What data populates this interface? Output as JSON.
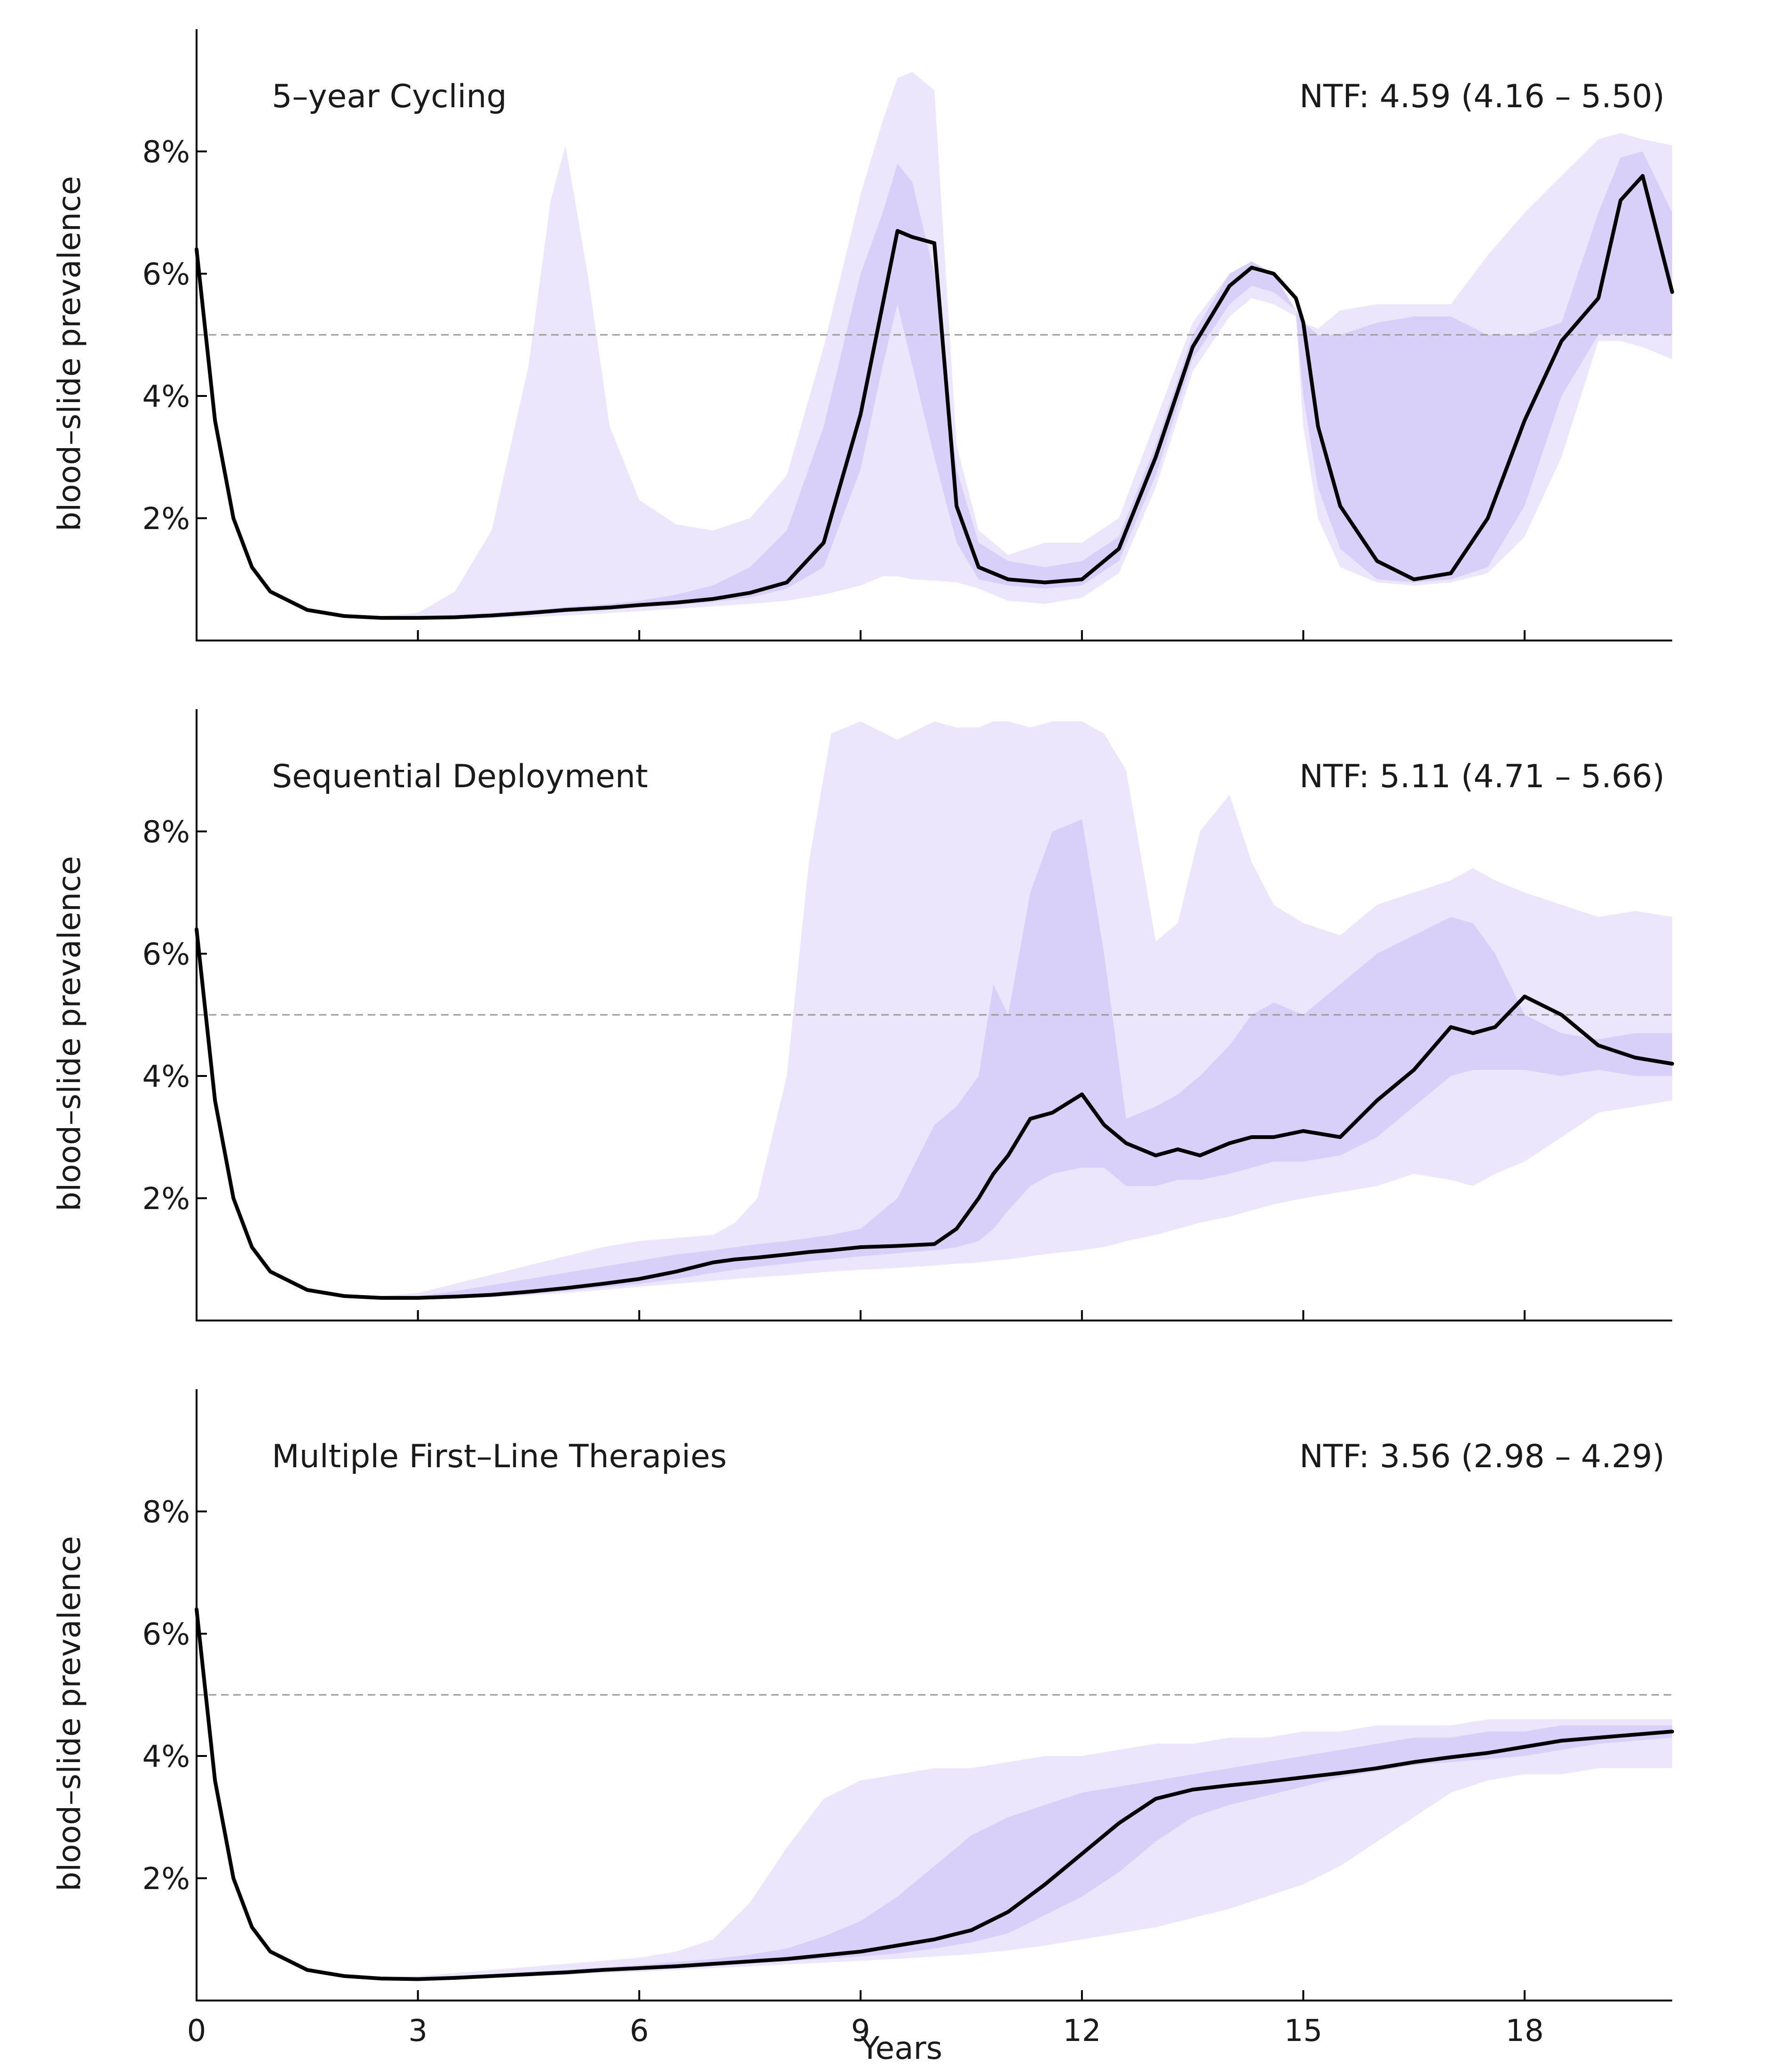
{
  "colors": {
    "outer_band": "#ebe6fb",
    "inner_band": "#d9d0f9",
    "median_line": "#000000",
    "threshold_line": "#9a9a9a",
    "axis": "#000000"
  },
  "x_axis": {
    "label": "Years",
    "ticks": [
      0,
      3,
      6,
      9,
      12,
      15,
      18
    ],
    "range": [
      0,
      20
    ]
  },
  "y_axis": {
    "label": "blood–slide prevalence",
    "ticks": [
      0.02,
      0.04,
      0.06,
      0.08
    ],
    "tick_labels": [
      "2%",
      "4%",
      "6%",
      "8%"
    ],
    "range": [
      0,
      0.1
    ]
  },
  "chart_data": [
    {
      "type": "area",
      "title": "5–year Cycling",
      "annotation": "NTF: 4.59 (4.16 – 5.50)",
      "xlabel": "",
      "ylabel": "blood–slide prevalence",
      "xlim": [
        0,
        20
      ],
      "ylim": [
        0,
        0.1
      ],
      "threshold": 0.05,
      "x": [
        0,
        0.25,
        0.5,
        0.75,
        1,
        1.5,
        2,
        2.5,
        3,
        3.5,
        4,
        4.5,
        4.8,
        5,
        5.3,
        5.6,
        6,
        6.5,
        7,
        7.5,
        8,
        8.5,
        9,
        9.3,
        9.5,
        9.7,
        10,
        10.3,
        10.6,
        11,
        11.5,
        12,
        12.5,
        13,
        13.5,
        14,
        14.3,
        14.6,
        14.9,
        15,
        15.2,
        15.5,
        16,
        16.5,
        17,
        17.5,
        18,
        18.5,
        19,
        19.3,
        19.6,
        20
      ],
      "series": [
        {
          "name": "",
          "role": "outer_upper",
          "values": [
            0.064,
            0.036,
            0.02,
            0.012,
            0.008,
            0.005,
            0.004,
            0.004,
            0.0045,
            0.008,
            0.018,
            0.045,
            0.072,
            0.081,
            0.06,
            0.035,
            0.023,
            0.019,
            0.018,
            0.02,
            0.027,
            0.048,
            0.073,
            0.085,
            0.092,
            0.093,
            0.09,
            0.032,
            0.018,
            0.014,
            0.016,
            0.016,
            0.02,
            0.036,
            0.052,
            0.06,
            0.062,
            0.06,
            0.054,
            0.052,
            0.051,
            0.054,
            0.055,
            0.055,
            0.055,
            0.063,
            0.07,
            0.076,
            0.082,
            0.083,
            0.082,
            0.081
          ]
        },
        {
          "name": "",
          "role": "inner_upper",
          "values": [
            0.064,
            0.036,
            0.02,
            0.012,
            0.008,
            0.005,
            0.004,
            0.004,
            0.004,
            0.0042,
            0.0045,
            0.005,
            0.0052,
            0.0055,
            0.0057,
            0.006,
            0.0065,
            0.0075,
            0.009,
            0.012,
            0.018,
            0.035,
            0.06,
            0.07,
            0.078,
            0.075,
            0.06,
            0.028,
            0.016,
            0.013,
            0.012,
            0.013,
            0.017,
            0.032,
            0.05,
            0.06,
            0.062,
            0.06,
            0.054,
            0.052,
            0.05,
            0.05,
            0.052,
            0.053,
            0.053,
            0.05,
            0.05,
            0.052,
            0.07,
            0.079,
            0.08,
            0.07
          ]
        },
        {
          "name": "",
          "role": "median",
          "values": [
            0.064,
            0.036,
            0.02,
            0.012,
            0.008,
            0.005,
            0.004,
            0.0037,
            0.0037,
            0.0038,
            0.0041,
            0.0045,
            0.0048,
            0.005,
            0.0052,
            0.0054,
            0.0058,
            0.0062,
            0.0068,
            0.0078,
            0.0095,
            0.016,
            0.037,
            0.055,
            0.067,
            0.066,
            0.065,
            0.022,
            0.012,
            0.01,
            0.0095,
            0.01,
            0.015,
            0.03,
            0.048,
            0.058,
            0.061,
            0.06,
            0.056,
            0.052,
            0.035,
            0.022,
            0.013,
            0.01,
            0.011,
            0.02,
            0.036,
            0.049,
            0.056,
            0.072,
            0.076,
            0.057
          ]
        },
        {
          "name": "",
          "role": "inner_lower",
          "values": [
            0.064,
            0.036,
            0.02,
            0.012,
            0.008,
            0.005,
            0.004,
            0.0036,
            0.0036,
            0.0037,
            0.0039,
            0.0042,
            0.0044,
            0.0046,
            0.0048,
            0.005,
            0.0054,
            0.0058,
            0.0063,
            0.007,
            0.0085,
            0.012,
            0.028,
            0.045,
            0.055,
            0.045,
            0.03,
            0.016,
            0.01,
            0.009,
            0.0085,
            0.009,
            0.013,
            0.027,
            0.046,
            0.055,
            0.058,
            0.057,
            0.054,
            0.04,
            0.025,
            0.015,
            0.01,
            0.0095,
            0.01,
            0.012,
            0.022,
            0.04,
            0.05,
            0.05,
            0.05,
            0.05
          ]
        },
        {
          "name": "",
          "role": "outer_lower",
          "values": [
            0.064,
            0.036,
            0.02,
            0.012,
            0.008,
            0.005,
            0.004,
            0.0036,
            0.0035,
            0.0035,
            0.0036,
            0.0038,
            0.004,
            0.0041,
            0.0043,
            0.0045,
            0.0048,
            0.0052,
            0.0056,
            0.006,
            0.0065,
            0.0075,
            0.009,
            0.0105,
            0.0105,
            0.01,
            0.0098,
            0.0095,
            0.0085,
            0.0065,
            0.006,
            0.007,
            0.011,
            0.025,
            0.044,
            0.053,
            0.056,
            0.055,
            0.053,
            0.035,
            0.02,
            0.012,
            0.0095,
            0.009,
            0.0095,
            0.011,
            0.017,
            0.03,
            0.049,
            0.049,
            0.048,
            0.046
          ]
        }
      ]
    },
    {
      "type": "area",
      "title": "Sequential Deployment",
      "annotation": "NTF: 5.11 (4.71 – 5.66)",
      "xlabel": "",
      "ylabel": "blood–slide prevalence",
      "xlim": [
        0,
        20
      ],
      "ylim": [
        0,
        0.1
      ],
      "threshold": 0.05,
      "x": [
        0,
        0.25,
        0.5,
        0.75,
        1,
        1.5,
        2,
        2.5,
        3,
        3.5,
        4,
        4.5,
        5,
        5.5,
        6,
        6.5,
        7,
        7.3,
        7.6,
        8,
        8.3,
        8.6,
        9,
        9.5,
        10,
        10.3,
        10.6,
        10.8,
        11,
        11.3,
        11.6,
        12,
        12.3,
        12.6,
        13,
        13.3,
        13.6,
        14,
        14.3,
        14.6,
        15,
        15.5,
        16,
        16.5,
        17,
        17.3,
        17.6,
        18,
        18.5,
        19,
        19.5,
        20
      ],
      "series": [
        {
          "name": "",
          "role": "outer_upper",
          "values": [
            0.064,
            0.036,
            0.02,
            0.012,
            0.008,
            0.005,
            0.0042,
            0.004,
            0.0045,
            0.006,
            0.0075,
            0.009,
            0.0105,
            0.012,
            0.013,
            0.0135,
            0.014,
            0.016,
            0.02,
            0.04,
            0.075,
            0.096,
            0.098,
            0.095,
            0.098,
            0.097,
            0.097,
            0.098,
            0.098,
            0.097,
            0.098,
            0.098,
            0.096,
            0.09,
            0.062,
            0.065,
            0.08,
            0.086,
            0.075,
            0.068,
            0.065,
            0.063,
            0.068,
            0.07,
            0.072,
            0.074,
            0.072,
            0.07,
            0.068,
            0.066,
            0.067,
            0.066
          ]
        },
        {
          "name": "",
          "role": "inner_upper",
          "values": [
            0.064,
            0.036,
            0.02,
            0.012,
            0.008,
            0.005,
            0.0042,
            0.0038,
            0.004,
            0.0048,
            0.0058,
            0.0068,
            0.0078,
            0.0088,
            0.0098,
            0.0108,
            0.0115,
            0.012,
            0.0125,
            0.013,
            0.0135,
            0.014,
            0.015,
            0.02,
            0.032,
            0.035,
            0.04,
            0.055,
            0.05,
            0.07,
            0.08,
            0.082,
            0.06,
            0.033,
            0.035,
            0.037,
            0.04,
            0.045,
            0.05,
            0.052,
            0.05,
            0.055,
            0.06,
            0.063,
            0.066,
            0.065,
            0.06,
            0.05,
            0.047,
            0.046,
            0.047,
            0.047
          ]
        },
        {
          "name": "",
          "role": "median",
          "values": [
            0.064,
            0.036,
            0.02,
            0.012,
            0.008,
            0.005,
            0.004,
            0.0037,
            0.0037,
            0.0039,
            0.0042,
            0.0047,
            0.0053,
            0.006,
            0.0068,
            0.008,
            0.0095,
            0.01,
            0.0103,
            0.0108,
            0.0112,
            0.0115,
            0.012,
            0.0122,
            0.0125,
            0.015,
            0.02,
            0.024,
            0.027,
            0.033,
            0.034,
            0.037,
            0.032,
            0.029,
            0.027,
            0.028,
            0.027,
            0.029,
            0.03,
            0.03,
            0.031,
            0.03,
            0.036,
            0.041,
            0.048,
            0.047,
            0.048,
            0.053,
            0.05,
            0.045,
            0.043,
            0.042
          ]
        },
        {
          "name": "",
          "role": "inner_lower",
          "values": [
            0.064,
            0.036,
            0.02,
            0.012,
            0.008,
            0.005,
            0.004,
            0.0036,
            0.0036,
            0.0037,
            0.0039,
            0.0043,
            0.0048,
            0.0054,
            0.006,
            0.0068,
            0.0078,
            0.0083,
            0.0088,
            0.0093,
            0.0097,
            0.01,
            0.0105,
            0.011,
            0.0115,
            0.012,
            0.013,
            0.015,
            0.018,
            0.022,
            0.024,
            0.025,
            0.025,
            0.022,
            0.022,
            0.023,
            0.023,
            0.024,
            0.025,
            0.026,
            0.026,
            0.027,
            0.03,
            0.035,
            0.04,
            0.041,
            0.041,
            0.041,
            0.04,
            0.041,
            0.04,
            0.04
          ]
        },
        {
          "name": "",
          "role": "outer_lower",
          "values": [
            0.064,
            0.036,
            0.02,
            0.012,
            0.008,
            0.005,
            0.004,
            0.0036,
            0.0035,
            0.0036,
            0.0038,
            0.0041,
            0.0045,
            0.005,
            0.0055,
            0.006,
            0.0065,
            0.0068,
            0.0071,
            0.0074,
            0.0077,
            0.008,
            0.0083,
            0.0086,
            0.009,
            0.0093,
            0.0095,
            0.0098,
            0.01,
            0.0105,
            0.011,
            0.0115,
            0.012,
            0.013,
            0.014,
            0.015,
            0.016,
            0.017,
            0.018,
            0.019,
            0.02,
            0.021,
            0.022,
            0.024,
            0.023,
            0.022,
            0.024,
            0.026,
            0.03,
            0.034,
            0.035,
            0.036
          ]
        }
      ]
    },
    {
      "type": "area",
      "title": "Multiple First–Line Therapies",
      "annotation": "NTF: 3.56 (2.98 – 4.29)",
      "xlabel": "Years",
      "ylabel": "blood–slide prevalence",
      "xlim": [
        0,
        20
      ],
      "ylim": [
        0,
        0.1
      ],
      "threshold": 0.05,
      "x": [
        0,
        0.25,
        0.5,
        0.75,
        1,
        1.5,
        2,
        2.5,
        3,
        3.5,
        4,
        4.5,
        5,
        5.5,
        6,
        6.5,
        7,
        7.5,
        8,
        8.5,
        9,
        9.5,
        10,
        10.5,
        11,
        11.5,
        12,
        12.5,
        13,
        13.5,
        14,
        14.5,
        15,
        15.5,
        16,
        16.5,
        17,
        17.5,
        18,
        18.5,
        19,
        19.5,
        20
      ],
      "series": [
        {
          "name": "",
          "role": "outer_upper",
          "values": [
            0.064,
            0.036,
            0.02,
            0.012,
            0.008,
            0.005,
            0.004,
            0.0038,
            0.004,
            0.0045,
            0.005,
            0.0055,
            0.006,
            0.0065,
            0.007,
            0.008,
            0.01,
            0.016,
            0.025,
            0.033,
            0.036,
            0.037,
            0.038,
            0.038,
            0.039,
            0.04,
            0.04,
            0.041,
            0.042,
            0.042,
            0.043,
            0.043,
            0.044,
            0.044,
            0.045,
            0.045,
            0.045,
            0.046,
            0.046,
            0.046,
            0.046,
            0.046,
            0.046
          ]
        },
        {
          "name": "",
          "role": "inner_upper",
          "values": [
            0.064,
            0.036,
            0.02,
            0.012,
            0.008,
            0.005,
            0.004,
            0.0037,
            0.0037,
            0.004,
            0.0043,
            0.0047,
            0.005,
            0.0054,
            0.0058,
            0.0063,
            0.0068,
            0.0075,
            0.0085,
            0.0105,
            0.013,
            0.017,
            0.022,
            0.027,
            0.03,
            0.032,
            0.034,
            0.035,
            0.036,
            0.037,
            0.038,
            0.039,
            0.04,
            0.041,
            0.042,
            0.043,
            0.043,
            0.044,
            0.044,
            0.045,
            0.045,
            0.045,
            0.045
          ]
        },
        {
          "name": "",
          "role": "median",
          "values": [
            0.064,
            0.036,
            0.02,
            0.012,
            0.008,
            0.005,
            0.004,
            0.0036,
            0.0035,
            0.0037,
            0.004,
            0.0043,
            0.0046,
            0.005,
            0.0053,
            0.0056,
            0.006,
            0.0064,
            0.0068,
            0.0074,
            0.008,
            0.009,
            0.01,
            0.0115,
            0.0145,
            0.019,
            0.024,
            0.029,
            0.033,
            0.0345,
            0.0352,
            0.0358,
            0.0365,
            0.0372,
            0.038,
            0.039,
            0.0398,
            0.0405,
            0.0415,
            0.0425,
            0.043,
            0.0435,
            0.044
          ]
        },
        {
          "name": "",
          "role": "inner_lower",
          "values": [
            0.064,
            0.036,
            0.02,
            0.012,
            0.008,
            0.005,
            0.004,
            0.0036,
            0.0035,
            0.0036,
            0.0038,
            0.0041,
            0.0044,
            0.0047,
            0.005,
            0.0053,
            0.0056,
            0.006,
            0.0064,
            0.0068,
            0.0072,
            0.0077,
            0.0085,
            0.0095,
            0.011,
            0.014,
            0.017,
            0.021,
            0.026,
            0.03,
            0.032,
            0.0335,
            0.035,
            0.0365,
            0.0375,
            0.0385,
            0.039,
            0.0395,
            0.04,
            0.041,
            0.042,
            0.0425,
            0.043
          ]
        },
        {
          "name": "",
          "role": "outer_lower",
          "values": [
            0.064,
            0.036,
            0.02,
            0.012,
            0.008,
            0.005,
            0.004,
            0.0036,
            0.0035,
            0.0035,
            0.0037,
            0.0039,
            0.0042,
            0.0045,
            0.0047,
            0.005,
            0.0053,
            0.0056,
            0.0059,
            0.0062,
            0.0065,
            0.0068,
            0.0072,
            0.0076,
            0.0082,
            0.009,
            0.01,
            0.011,
            0.012,
            0.0135,
            0.015,
            0.017,
            0.019,
            0.022,
            0.026,
            0.03,
            0.034,
            0.036,
            0.037,
            0.037,
            0.038,
            0.038,
            0.038
          ]
        }
      ]
    }
  ]
}
